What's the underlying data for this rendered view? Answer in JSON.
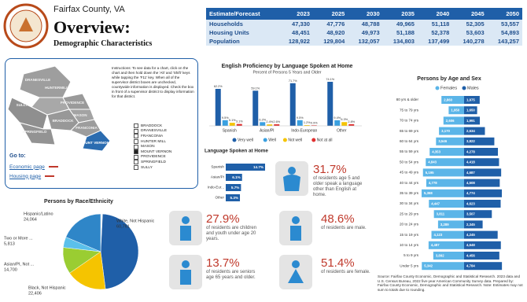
{
  "header": {
    "county": "Fairfax County, VA",
    "title": "Overview:",
    "subtitle": "Demographic Characteristics"
  },
  "table": {
    "header": "Estimate/Forecast",
    "columns": [
      "2023",
      "2025",
      "2030",
      "2035",
      "2040",
      "2045",
      "2050"
    ],
    "rows": [
      [
        "Households",
        "47,330",
        "47,776",
        "48,788",
        "49,965",
        "51,118",
        "52,305",
        "53,557"
      ],
      [
        "Housing Units",
        "48,451",
        "48,920",
        "49,973",
        "51,188",
        "52,378",
        "53,603",
        "54,893"
      ],
      [
        "Population",
        "128,922",
        "129,804",
        "132,057",
        "134,803",
        "137,499",
        "140,278",
        "143,257"
      ]
    ]
  },
  "map": {
    "instructions": "Instructions: To see data for a chart, click on the chart and then hold down the 'Alt' and 'Shift' keys while tapping the 'F11' key. When all of the supervisor district boxes are unchecked, countywide information is displayed. Check the box in front of a supervisor district to display information for that district.",
    "districts": [
      "DRANESVILLE",
      "HUNTERMILL",
      "SULLY",
      "PROVIDENCE",
      "MASON",
      "BRADDOCK",
      "SPRINGFIELD",
      "FRANCONIA",
      "MOUNT VERNON"
    ],
    "checklist": [
      {
        "label": "BRADDOCK",
        "checked": false
      },
      {
        "label": "DRANESVILLE",
        "checked": false
      },
      {
        "label": "FRANCONIA",
        "checked": false
      },
      {
        "label": "HUNTER MILL",
        "checked": false
      },
      {
        "label": "MASON",
        "checked": false
      },
      {
        "label": "MOUNT VERNON",
        "checked": true
      },
      {
        "label": "PROVIDENCE",
        "checked": false
      },
      {
        "label": "SPRINGFIELD",
        "checked": false
      },
      {
        "label": "SULLY",
        "checked": false
      }
    ],
    "goto": "Go to:",
    "links": [
      "Economic page",
      "Housing page"
    ]
  },
  "stats": [
    {
      "value": "31.7%",
      "text": "of residents age 5 and older speak a language other than English at home."
    },
    {
      "value": "27.9%",
      "text": "of residents are children and youth under age 20 years."
    },
    {
      "value": "48.6%",
      "text": "of residents are male."
    },
    {
      "value": "13.7%",
      "text": "of residents are seniors age 65 years and older."
    },
    {
      "value": "51.4%",
      "text": "of residents are female."
    }
  ],
  "footnote": "Source: Fairfax County Economic, Demographic and Statistical Research. 2023 data and U.S. Census Bureau, 2022 five-year American Community Survey data. Prepared by: Fairfax County Economic, Demographic and Statistical Research. Note: Estimates may not sum to totals due to rounding.",
  "chart_data": [
    {
      "type": "bar",
      "title": "English Proficiency by Language Spoken at Home",
      "subtitle": "Percent of Persons 5 Years and Older",
      "categories": [
        "Spanish",
        "Asian/PI",
        "Indo-European",
        "Other"
      ],
      "series": [
        {
          "name": "Very well",
          "color": "#1f5fa8",
          "values": [
            62.2,
            59.1,
            71.7,
            74.1
          ],
          "value_labels": [
            "62.2%",
            "59.1%",
            "71.7%",
            "74.1%"
          ]
        },
        {
          "name": "Well",
          "color": "#3aa0e0",
          "values": [
            9.5,
            6.2,
            9.5,
            9.4
          ],
          "value_labels": [
            "9.5%",
            "6.2%",
            "9.5%",
            "9.4%"
          ]
        },
        {
          "name": "Not well",
          "color": "#f5c400",
          "values": [
            5.1,
            2.4,
            1.2,
            6.3
          ],
          "value_labels": [
            "5.1%",
            "2.4%",
            "1.2%",
            "6.3%"
          ]
        },
        {
          "name": "Not at all",
          "color": "#e03030",
          "values": [
            3.1,
            2.6,
            0.9,
            2.8
          ],
          "value_labels": [
            "3.1%",
            "2.6%",
            "0.9%",
            "2.8%"
          ]
        }
      ],
      "legend": "bottom"
    },
    {
      "type": "hbar",
      "title": "Language Spoken at Home",
      "categories": [
        "Spanish",
        "Asian/PI",
        "Indo-Eur...",
        "Other"
      ],
      "values": [
        14.7,
        6.1,
        5.7,
        5.3
      ],
      "value_labels": [
        "14.7%",
        "6.1%",
        "5.7%",
        "5.3%"
      ],
      "color": "#1f5fa8"
    },
    {
      "type": "pyramid",
      "title": "Persons by Age and Sex",
      "categories": [
        "80 yrs & older",
        "75 to 79 yrs",
        "70 to 74 yrs",
        "65 to 69 yrs",
        "60 to 64 yrs",
        "55 to 59 yrs",
        "50 to 54 yrs",
        "45 to 49 yrs",
        "40 to 44 yrs",
        "35 to 39 yrs",
        "30 to 34 yrs",
        "25 to 29 yrs",
        "20 to 24 yrs",
        "15 to 19 yrs",
        "10 to 14 yrs",
        "5 to 9 yrs",
        "Under 5 yrs"
      ],
      "series": [
        {
          "name": "Females",
          "color": "#5bb5e8",
          "values": [
            2860,
            1950,
            2606,
            3170,
            3546,
            4353,
            4843,
            5195,
            4778,
            5368,
            4447,
            3811,
            3289,
            4123,
            4487,
            3892,
            5342
          ],
          "value_labels": [
            "2,860",
            "1,950",
            "2,606",
            "3,170",
            "3,546",
            "4,353",
            "4,843",
            "5,195",
            "4,778",
            "5,368",
            "4,447",
            "3,811",
            "3,289",
            "4,123",
            "4,487",
            "3,892",
            "5,342"
          ]
        },
        {
          "name": "Males",
          "color": "#1f5fa8",
          "values": [
            1975,
            1650,
            1991,
            2634,
            3822,
            4278,
            4418,
            4687,
            4508,
            4774,
            4623,
            3507,
            2345,
            4245,
            4648,
            4456,
            4784
          ],
          "value_labels": [
            "1,975",
            "1,650",
            "1,991",
            "2,634",
            "3,822",
            "4,278",
            "4,418",
            "4,687",
            "4,508",
            "4,774",
            "4,623",
            "3,507",
            "2,345",
            "4,245",
            "4,648",
            "4,456",
            "4,784"
          ]
        }
      ],
      "legend": "top"
    },
    {
      "type": "pie",
      "title": "Persons by Race/Ethnicity",
      "categories": [
        "White, Not Hispanic",
        "Black, Not Hispanic",
        "Asian/PI, Not ...",
        "Two or More ...",
        "Hispanic/Latino"
      ],
      "values": [
        60761,
        22406,
        14700,
        5813,
        24064
      ],
      "value_labels": [
        "60,761",
        "22,406",
        "14,700",
        "5,813",
        "24,064"
      ],
      "colors": [
        "#1f5fa8",
        "#f5c400",
        "#9acd32",
        "#5bc0eb",
        "#2f86c8"
      ]
    }
  ]
}
